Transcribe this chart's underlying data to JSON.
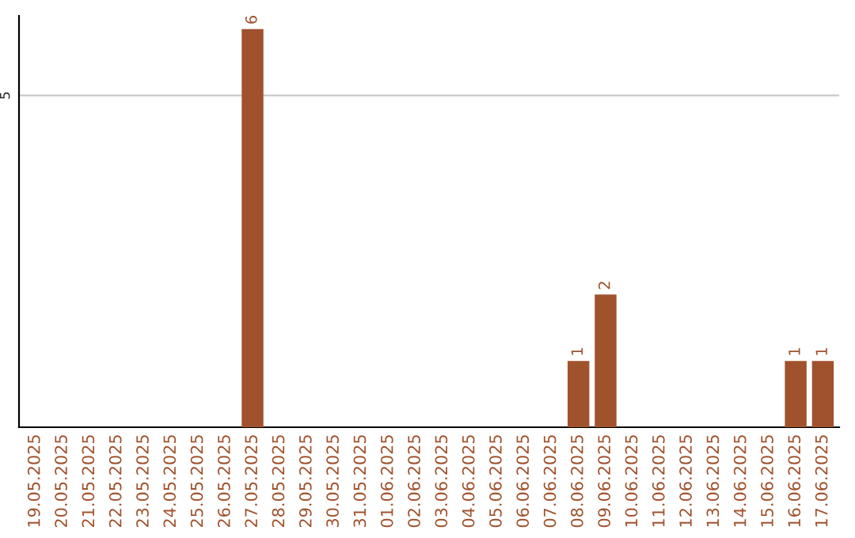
{
  "chart_data": {
    "type": "bar",
    "categories": [
      "19.05.2025",
      "20.05.2025",
      "21.05.2025",
      "22.05.2025",
      "23.05.2025",
      "24.05.2025",
      "25.05.2025",
      "26.05.2025",
      "27.05.2025",
      "28.05.2025",
      "29.05.2025",
      "30.05.2025",
      "31.05.2025",
      "01.06.2025",
      "02.06.2025",
      "03.06.2025",
      "04.06.2025",
      "05.06.2025",
      "06.06.2025",
      "07.06.2025",
      "08.06.2025",
      "09.06.2025",
      "10.06.2025",
      "11.06.2025",
      "12.06.2025",
      "13.06.2025",
      "14.06.2025",
      "15.06.2025",
      "16.06.2025",
      "17.06.2025"
    ],
    "values": [
      0,
      0,
      0,
      0,
      0,
      0,
      0,
      0,
      6,
      0,
      0,
      0,
      0,
      0,
      0,
      0,
      0,
      0,
      0,
      0,
      1,
      2,
      0,
      0,
      0,
      0,
      0,
      0,
      1,
      1
    ],
    "value_labels": [
      null,
      null,
      null,
      null,
      null,
      null,
      null,
      null,
      "6",
      null,
      null,
      null,
      null,
      null,
      null,
      null,
      null,
      null,
      null,
      null,
      "1",
      "2",
      null,
      null,
      null,
      null,
      null,
      null,
      "1",
      "1"
    ],
    "color": "#a0522d",
    "ylim": [
      0,
      6.2
    ],
    "yticks": [
      5
    ],
    "grid": "y",
    "legend": false
  }
}
